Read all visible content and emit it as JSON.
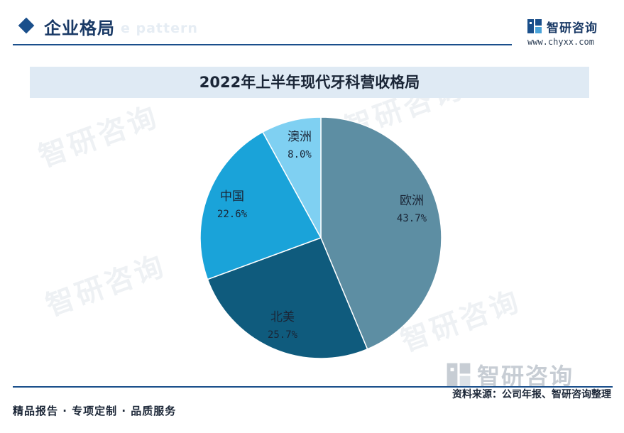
{
  "header": {
    "title": "企业格局",
    "subtitle": "e pattern",
    "brand_name": "智研咨询",
    "brand_url": "www.chyxx.com"
  },
  "watermark": {
    "text": "智研咨询"
  },
  "colors": {
    "accent": "#1a4f8b",
    "title_band": "#dfeaf4"
  },
  "chart_data": {
    "type": "pie",
    "title": "2022年上半年现代牙科营收格局",
    "unit": "%",
    "slices": [
      {
        "label": "欧洲",
        "value": 43.7,
        "display": "43.7%",
        "color": "#5d8ea3"
      },
      {
        "label": "北美",
        "value": 25.7,
        "display": "25.7%",
        "color": "#0f5b7d"
      },
      {
        "label": "中国",
        "value": 22.6,
        "display": "22.6%",
        "color": "#1aa3d9"
      },
      {
        "label": "澳洲",
        "value": 8.0,
        "display": "8.0%",
        "color": "#7fd0f2"
      }
    ]
  },
  "footer": {
    "left_text": "精品报告 · 专项定制 · 品质服务",
    "source": "资料来源：公司年报、智研咨询整理"
  }
}
